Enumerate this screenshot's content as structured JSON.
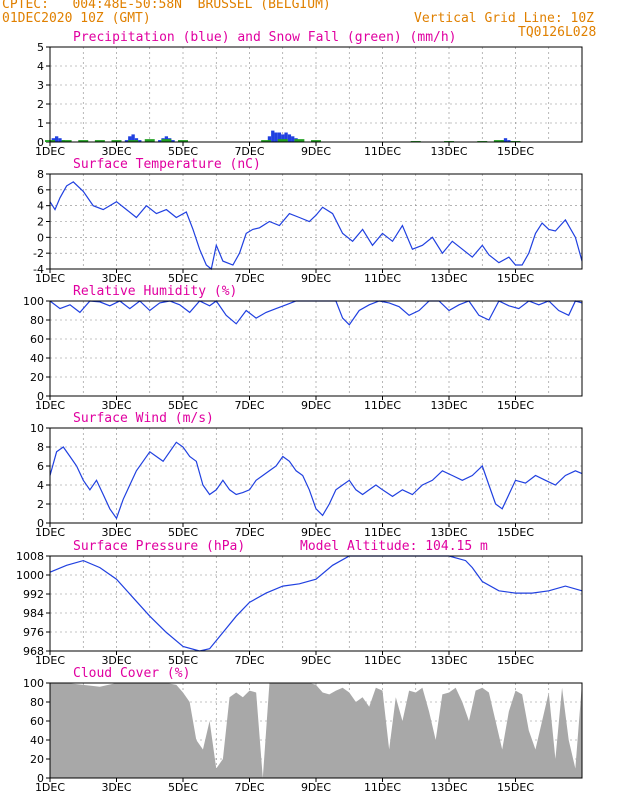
{
  "header": {
    "line1_left": "CPTEC:   004:48E-50:58N  BRUSSEL (BELGIUM)",
    "line2_left": "01DEC2020 10Z (GMT)",
    "line1_right": "Vertical Grid Line: 10Z",
    "line2_right": "TQ0126L028"
  },
  "colors": {
    "accent_title": "#e000a0",
    "header": "#e08000",
    "line": "#2040e0",
    "precip_blue": "#2040e0",
    "snow_green": "#20a020",
    "cloud_gray": "#a8a8a8"
  },
  "x_ticks": [
    "1DEC",
    "3DEC",
    "5DEC",
    "7DEC",
    "9DEC",
    "11DEC",
    "13DEC",
    "15DEC"
  ],
  "chart_data": [
    {
      "type": "area",
      "id": "precip",
      "title": "Precipitation (blue) and Snow Fall (green) (mm/h)",
      "ylim": [
        0,
        5
      ],
      "yticks": [
        "0",
        "1",
        "2",
        "3",
        "4",
        "5"
      ],
      "series": [
        {
          "name": "Precipitation",
          "x": [
            0.1,
            0.2,
            0.3,
            0.4,
            2.3,
            2.4,
            2.5,
            2.6,
            2.7,
            3.3,
            3.4,
            3.5,
            3.6,
            3.7,
            6.6,
            6.7,
            6.8,
            6.9,
            7.0,
            7.1,
            7.2,
            7.3,
            7.4,
            7.5,
            13.6,
            13.7,
            13.8
          ],
          "values": [
            0.2,
            0.3,
            0.2,
            0.1,
            0.1,
            0.3,
            0.4,
            0.2,
            0.1,
            0.1,
            0.2,
            0.3,
            0.2,
            0.1,
            0.3,
            0.6,
            0.5,
            0.5,
            0.4,
            0.5,
            0.4,
            0.3,
            0.2,
            0.1,
            0.1,
            0.2,
            0.1
          ]
        },
        {
          "name": "Snow Fall",
          "x": [
            0.0,
            0.5,
            1.0,
            1.5,
            2.0,
            2.5,
            3.0,
            3.5,
            4.0,
            6.5,
            7.0,
            7.5,
            8.0,
            11.0,
            12.0,
            13.0,
            13.5,
            14.0
          ],
          "values": [
            0.1,
            0.1,
            0.1,
            0.1,
            0.1,
            0.1,
            0.15,
            0.15,
            0.1,
            0.1,
            0.15,
            0.15,
            0.1,
            0.05,
            0.05,
            0.05,
            0.1,
            0.05
          ]
        }
      ]
    },
    {
      "type": "line",
      "id": "temp",
      "title": "Surface Temperature (nC)",
      "ylim": [
        -4,
        8
      ],
      "yticks": [
        "-4",
        "-2",
        "0",
        "2",
        "4",
        "6",
        "8"
      ],
      "x": [
        0,
        0.15,
        0.3,
        0.5,
        0.7,
        1.0,
        1.3,
        1.6,
        2.0,
        2.3,
        2.6,
        2.9,
        3.2,
        3.5,
        3.8,
        4.1,
        4.3,
        4.5,
        4.7,
        4.85,
        5.0,
        5.2,
        5.5,
        5.7,
        5.9,
        6.1,
        6.3,
        6.6,
        6.9,
        7.2,
        7.5,
        7.8,
        8.0,
        8.2,
        8.5,
        8.8,
        9.1,
        9.4,
        9.7,
        10.0,
        10.3,
        10.6,
        10.9,
        11.2,
        11.5,
        11.8,
        12.1,
        12.4,
        12.7,
        13.0,
        13.2,
        13.5,
        13.8,
        14.0,
        14.2,
        14.4,
        14.6,
        14.8,
        15.0,
        15.2,
        15.5,
        15.8,
        16.0
      ],
      "values": [
        4.5,
        3.5,
        5.0,
        6.5,
        7.0,
        5.8,
        4.0,
        3.5,
        4.5,
        3.5,
        2.5,
        4.0,
        3.0,
        3.5,
        2.5,
        3.2,
        1.0,
        -1.5,
        -3.5,
        -4.0,
        -1.0,
        -3.0,
        -3.5,
        -2.0,
        0.5,
        1.0,
        1.2,
        2.0,
        1.5,
        3.0,
        2.5,
        2.0,
        2.8,
        3.8,
        3.0,
        0.5,
        -0.5,
        1.0,
        -1.0,
        0.5,
        -0.5,
        1.5,
        -1.5,
        -1.0,
        0.0,
        -2.0,
        -0.5,
        -1.5,
        -2.5,
        -1.0,
        -2.2,
        -3.2,
        -2.5,
        -3.5,
        -3.5,
        -2.0,
        0.5,
        1.8,
        1.0,
        0.8,
        2.2,
        0.0,
        -3.0
      ]
    },
    {
      "type": "line",
      "id": "rh",
      "title": "Relative Humidity (%)",
      "ylim": [
        0,
        100
      ],
      "yticks": [
        "0",
        "20",
        "40",
        "60",
        "80",
        "100"
      ],
      "x": [
        0,
        0.3,
        0.6,
        0.9,
        1.2,
        1.5,
        1.8,
        2.1,
        2.4,
        2.7,
        3.0,
        3.3,
        3.6,
        3.9,
        4.2,
        4.5,
        4.8,
        5.0,
        5.3,
        5.6,
        5.9,
        6.2,
        6.5,
        6.8,
        7.1,
        7.4,
        7.7,
        8.0,
        8.3,
        8.6,
        8.8,
        9.0,
        9.3,
        9.6,
        9.9,
        10.2,
        10.5,
        10.8,
        11.1,
        11.4,
        11.7,
        12.0,
        12.3,
        12.6,
        12.9,
        13.2,
        13.5,
        13.8,
        14.1,
        14.4,
        14.7,
        15.0,
        15.3,
        15.6,
        15.8,
        16.0
      ],
      "values": [
        100,
        92,
        96,
        88,
        100,
        99,
        95,
        100,
        92,
        100,
        90,
        98,
        100,
        96,
        88,
        100,
        95,
        100,
        85,
        76,
        90,
        82,
        88,
        92,
        96,
        100,
        100,
        100,
        100,
        100,
        82,
        75,
        90,
        96,
        100,
        98,
        94,
        85,
        90,
        100,
        100,
        90,
        96,
        100,
        85,
        80,
        100,
        95,
        92,
        100,
        96,
        100,
        90,
        85,
        100,
        98
      ]
    },
    {
      "type": "line",
      "id": "wind",
      "title": "Surface Wind (m/s)",
      "ylim": [
        0,
        10
      ],
      "yticks": [
        "0",
        "2",
        "4",
        "6",
        "8",
        "10"
      ],
      "x": [
        0,
        0.2,
        0.4,
        0.6,
        0.8,
        1.0,
        1.2,
        1.4,
        1.6,
        1.8,
        2.0,
        2.2,
        2.4,
        2.6,
        2.8,
        3.0,
        3.2,
        3.4,
        3.6,
        3.8,
        4.0,
        4.2,
        4.4,
        4.6,
        4.8,
        5.0,
        5.2,
        5.4,
        5.6,
        5.8,
        6.0,
        6.2,
        6.4,
        6.6,
        6.8,
        7.0,
        7.2,
        7.4,
        7.6,
        7.8,
        8.0,
        8.2,
        8.4,
        8.6,
        8.8,
        9.0,
        9.2,
        9.4,
        9.6,
        9.8,
        10.0,
        10.3,
        10.6,
        10.9,
        11.2,
        11.5,
        11.8,
        12.1,
        12.4,
        12.7,
        13.0,
        13.2,
        13.4,
        13.6,
        13.8,
        14.0,
        14.3,
        14.6,
        14.9,
        15.2,
        15.5,
        15.8,
        16.0
      ],
      "values": [
        5,
        7.5,
        8,
        7,
        6,
        4.5,
        3.5,
        4.5,
        3,
        1.5,
        0.5,
        2.5,
        4,
        5.5,
        6.5,
        7.5,
        7,
        6.5,
        7.5,
        8.5,
        8,
        7,
        6.5,
        4,
        3,
        3.5,
        4.5,
        3.5,
        3,
        3.2,
        3.5,
        4.5,
        5,
        5.5,
        6,
        7,
        6.5,
        5.5,
        5,
        3.5,
        1.5,
        0.8,
        2,
        3.5,
        4,
        4.5,
        3.5,
        3,
        3.5,
        4,
        3.5,
        2.8,
        3.5,
        3,
        4,
        4.5,
        5.5,
        5,
        4.5,
        5,
        6,
        4,
        2,
        1.5,
        3,
        4.5,
        4.2,
        5,
        4.5,
        4,
        5,
        5.5,
        5.2
      ]
    },
    {
      "type": "line",
      "id": "pres",
      "title": "Surface Pressure (hPa)",
      "annotation": "Model Altitude: 104.15 m",
      "ylim": [
        967,
        1008
      ],
      "yticks": [
        "968",
        "976",
        "984",
        "992",
        "1000",
        "1008"
      ],
      "x": [
        0,
        0.5,
        1.0,
        1.5,
        2.0,
        2.5,
        3.0,
        3.5,
        4.0,
        4.5,
        4.8,
        5.2,
        5.6,
        6.0,
        6.5,
        7.0,
        7.5,
        8.0,
        8.5,
        9.0,
        9.5,
        10.0,
        10.5,
        11.0,
        11.5,
        12.0,
        12.5,
        12.7,
        13.0,
        13.5,
        14.0,
        14.5,
        15.0,
        15.5,
        16.0
      ],
      "values": [
        1001,
        1004,
        1006,
        1003,
        998,
        990,
        982,
        975,
        969,
        967,
        968,
        975,
        982,
        988,
        992,
        995,
        996,
        998,
        1004,
        1008,
        1009,
        1009,
        1009,
        1009,
        1008,
        1008,
        1006,
        1003,
        997,
        993,
        992,
        992,
        993,
        995,
        993
      ]
    },
    {
      "type": "area",
      "id": "cloud",
      "title": "Cloud Cover (%)",
      "ylim": [
        0,
        100
      ],
      "yticks": [
        "0",
        "20",
        "40",
        "60",
        "80",
        "100"
      ],
      "x": [
        0,
        0.5,
        1.0,
        1.5,
        2.0,
        2.5,
        3.0,
        3.5,
        3.8,
        4.0,
        4.2,
        4.4,
        4.6,
        4.8,
        5.0,
        5.2,
        5.4,
        5.6,
        5.8,
        6.0,
        6.2,
        6.4,
        6.6,
        6.8,
        7.0,
        7.2,
        7.4,
        7.6,
        7.8,
        8.0,
        8.2,
        8.4,
        8.6,
        8.8,
        9.0,
        9.2,
        9.4,
        9.6,
        9.8,
        10.0,
        10.2,
        10.4,
        10.6,
        10.8,
        11.0,
        11.2,
        11.4,
        11.6,
        11.8,
        12.0,
        12.2,
        12.4,
        12.6,
        12.8,
        13.0,
        13.2,
        13.4,
        13.6,
        13.8,
        14.0,
        14.2,
        14.4,
        14.6,
        14.8,
        15.0,
        15.2,
        15.4,
        15.6,
        15.8,
        16.0
      ],
      "values": [
        100,
        100,
        98,
        96,
        100,
        100,
        100,
        100,
        98,
        90,
        80,
        40,
        30,
        60,
        10,
        20,
        85,
        90,
        85,
        92,
        90,
        0,
        100,
        100,
        100,
        100,
        100,
        100,
        100,
        98,
        90,
        88,
        92,
        95,
        90,
        80,
        85,
        75,
        95,
        92,
        30,
        85,
        60,
        92,
        90,
        95,
        70,
        40,
        88,
        90,
        95,
        80,
        60,
        92,
        95,
        90,
        60,
        30,
        70,
        92,
        88,
        50,
        30,
        60,
        90,
        20,
        95,
        40,
        10,
        100
      ]
    }
  ]
}
